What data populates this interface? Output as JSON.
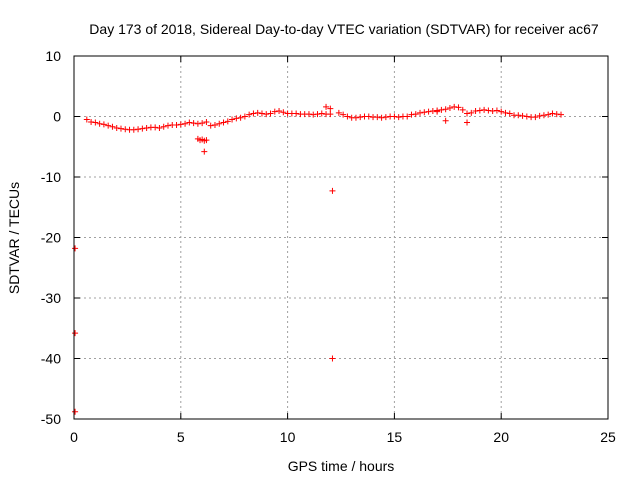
{
  "chart_data": {
    "type": "scatter",
    "title": "Day 173 of 2018, Sidereal Day-to-day VTEC variation (SDTVAR) for receiver ac67",
    "xlabel": "GPS time / hours",
    "ylabel": "SDTVAR / TECUs",
    "xlim": [
      0,
      25
    ],
    "ylim": [
      -50,
      10
    ],
    "xticks": [
      0,
      5,
      10,
      15,
      20,
      25
    ],
    "yticks": [
      -50,
      -40,
      -30,
      -20,
      -10,
      0,
      10
    ],
    "x_tick_labels": [
      "0",
      "5",
      "10",
      "15",
      "20",
      "25"
    ],
    "y_tick_labels": [
      "-50",
      "-40",
      "-30",
      "-20",
      "-10",
      "0",
      "10"
    ],
    "grid": true,
    "marker": "+",
    "point_color": "#ff0000",
    "series": [
      {
        "name": "SDTVAR",
        "x": [
          0.6,
          0.8,
          1.0,
          1.2,
          1.4,
          1.6,
          1.8,
          2.0,
          2.2,
          2.4,
          2.6,
          2.8,
          3.0,
          3.2,
          3.4,
          3.6,
          3.8,
          4.0,
          4.2,
          4.4,
          4.6,
          4.8,
          5.0,
          5.2,
          5.4,
          5.6,
          5.8,
          6.0,
          6.2,
          6.4,
          6.6,
          6.8,
          7.0,
          7.2,
          7.4,
          7.6,
          7.8,
          8.0,
          8.2,
          8.4,
          8.6,
          8.8,
          9.0,
          9.2,
          9.4,
          9.6,
          9.8,
          10.0,
          10.2,
          10.4,
          10.6,
          10.8,
          11.0,
          11.2,
          11.4,
          11.6,
          11.8,
          12.0,
          12.4,
          12.6,
          12.8,
          13.0,
          13.2,
          13.4,
          13.6,
          13.8,
          14.0,
          14.2,
          14.4,
          14.6,
          14.8,
          15.0,
          15.2,
          15.4,
          15.6,
          15.8,
          16.0,
          16.2,
          16.4,
          16.6,
          16.8,
          17.0,
          17.2,
          17.4,
          17.6,
          17.8,
          18.0,
          18.2,
          18.4,
          18.6,
          18.8,
          19.0,
          19.2,
          19.4,
          19.6,
          19.8,
          20.0,
          20.2,
          20.4,
          20.6,
          20.8,
          21.0,
          21.2,
          21.4,
          21.6,
          21.8,
          22.0,
          22.2,
          22.4,
          22.6,
          22.8,
          5.8,
          5.9,
          6.0,
          6.1,
          6.2,
          6.1,
          11.8,
          12.0,
          17.0,
          17.4,
          18.4,
          0.05,
          0.05,
          0.05,
          12.1,
          12.1
        ],
        "y": [
          -0.5,
          -0.9,
          -1.0,
          -1.2,
          -1.3,
          -1.5,
          -1.7,
          -1.9,
          -2.0,
          -2.1,
          -2.2,
          -2.2,
          -2.1,
          -2.0,
          -1.9,
          -1.8,
          -1.8,
          -1.9,
          -1.7,
          -1.5,
          -1.4,
          -1.4,
          -1.3,
          -1.2,
          -1.0,
          -1.1,
          -1.2,
          -1.1,
          -0.9,
          -1.5,
          -1.4,
          -1.2,
          -1.0,
          -0.8,
          -0.5,
          -0.3,
          -0.2,
          0.0,
          0.3,
          0.5,
          0.6,
          0.5,
          0.4,
          0.5,
          0.8,
          0.9,
          0.7,
          0.5,
          0.5,
          0.5,
          0.4,
          0.4,
          0.4,
          0.3,
          0.4,
          0.5,
          0.4,
          0.4,
          0.6,
          0.3,
          0.0,
          -0.2,
          -0.2,
          -0.1,
          0.0,
          0.0,
          -0.1,
          -0.1,
          -0.2,
          -0.1,
          0.0,
          0.0,
          -0.1,
          0.0,
          0.0,
          0.3,
          0.4,
          0.6,
          0.7,
          0.8,
          0.9,
          1.0,
          1.1,
          1.2,
          1.4,
          1.6,
          1.5,
          1.1,
          0.5,
          0.6,
          0.9,
          1.0,
          1.1,
          1.0,
          0.9,
          1.0,
          0.8,
          0.6,
          0.5,
          0.2,
          0.2,
          0.1,
          0.0,
          -0.1,
          -0.1,
          0.1,
          0.2,
          0.3,
          0.5,
          0.4,
          0.3,
          -3.7,
          -3.9,
          -3.8,
          -4.0,
          -3.9,
          -5.8,
          1.6,
          1.3,
          0.8,
          -0.7,
          -1.0,
          -21.8,
          -35.8,
          -48.8,
          -12.3,
          -40.0
        ]
      }
    ]
  }
}
